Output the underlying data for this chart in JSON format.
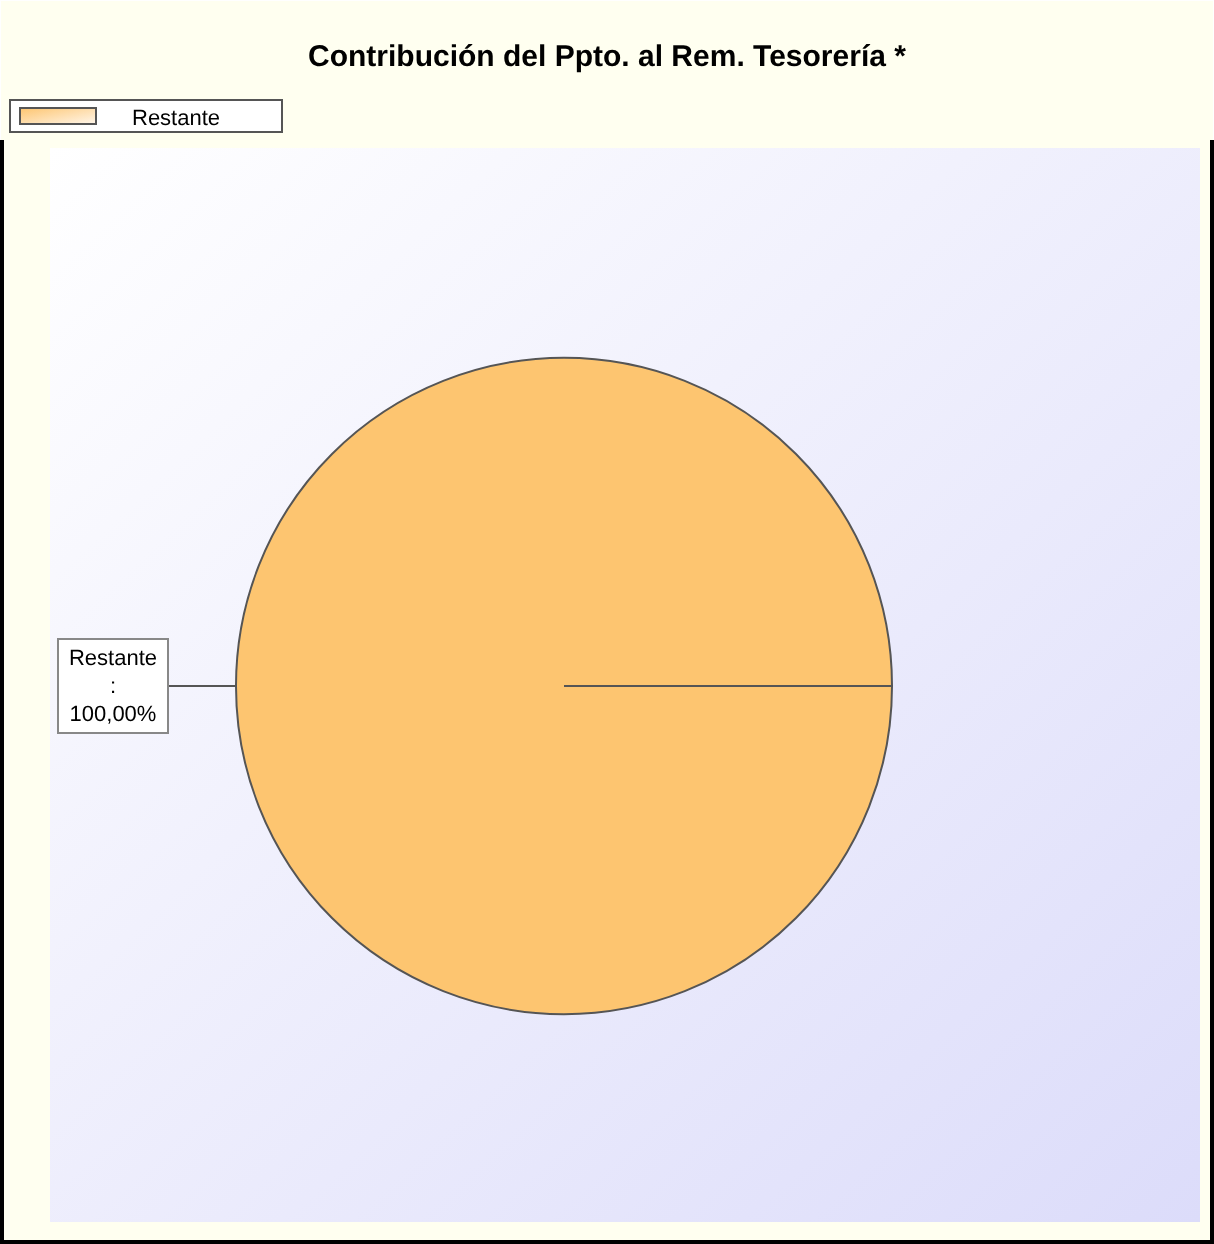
{
  "chart_data": {
    "type": "pie",
    "title": "Contribución del Ppto. al Rem. Tesorería *",
    "categories": [
      "Restante"
    ],
    "values": [
      100
    ],
    "value_labels": [
      "Restante : 100,00%"
    ],
    "colors": [
      "#fdc570"
    ],
    "legend": "top left"
  }
}
